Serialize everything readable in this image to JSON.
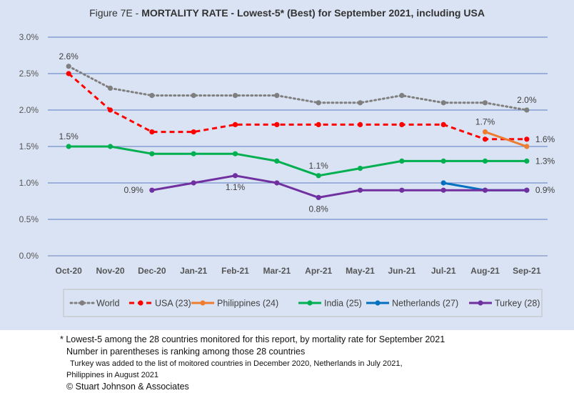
{
  "chart_data": {
    "type": "line",
    "title_prefix": "Figure 7E  - ",
    "title_main": "MORTALITY RATE - Lowest-5* (Best) for September 2021, including USA",
    "xlabel": "",
    "ylabel": "",
    "categories": [
      "Oct-20",
      "Nov-20",
      "Dec-20",
      "Jan-21",
      "Feb-21",
      "Mar-21",
      "Apr-21",
      "May-21",
      "Jun-21",
      "Jul-21",
      "Aug-21",
      "Sep-21"
    ],
    "y_ticks": [
      "0.0%",
      "0.5%",
      "1.0%",
      "1.5%",
      "2.0%",
      "2.5%",
      "3.0%"
    ],
    "ylim": [
      0,
      3.0
    ],
    "grid": true,
    "legend_position": "bottom",
    "series": [
      {
        "name": "World",
        "color": "#7f7f7f",
        "style": "dotted",
        "values": [
          2.6,
          2.3,
          2.2,
          2.2,
          2.2,
          2.2,
          2.1,
          2.1,
          2.2,
          2.1,
          2.1,
          2.0
        ]
      },
      {
        "name": "USA (23)",
        "color": "#ff0000",
        "style": "dashed",
        "values": [
          2.5,
          2.0,
          1.7,
          1.7,
          1.8,
          1.8,
          1.8,
          1.8,
          1.8,
          1.8,
          1.6,
          1.6
        ]
      },
      {
        "name": "Philippines (24)",
        "color": "#ed7d31",
        "style": "solid",
        "values": [
          null,
          null,
          null,
          null,
          null,
          null,
          null,
          null,
          null,
          null,
          1.7,
          1.5
        ]
      },
      {
        "name": "India (25)",
        "color": "#00b050",
        "style": "solid",
        "values": [
          1.5,
          1.5,
          1.4,
          1.4,
          1.4,
          1.3,
          1.1,
          1.2,
          1.3,
          1.3,
          1.3,
          1.3
        ]
      },
      {
        "name": "Netherlands (27)",
        "color": "#0070c0",
        "style": "solid",
        "values": [
          null,
          null,
          null,
          null,
          null,
          null,
          null,
          null,
          null,
          1.0,
          0.9,
          0.9
        ]
      },
      {
        "name": "Turkey (28)",
        "color": "#7030a0",
        "style": "solid",
        "values": [
          null,
          null,
          0.9,
          1.0,
          1.1,
          1.0,
          0.8,
          0.9,
          0.9,
          0.9,
          0.9,
          0.9
        ]
      }
    ],
    "annotations": [
      {
        "text": "2.6%",
        "series": 0,
        "index": 0,
        "anchor": "above"
      },
      {
        "text": "2.0%",
        "series": 0,
        "index": 11,
        "anchor": "above"
      },
      {
        "text": "1.7%",
        "series": 2,
        "index": 10,
        "anchor": "above"
      },
      {
        "text": "1.6%",
        "series": 1,
        "index": 11,
        "anchor": "right"
      },
      {
        "text": "1.5%",
        "series": 3,
        "index": 0,
        "anchor": "above"
      },
      {
        "text": "1.1%",
        "series": 3,
        "index": 6,
        "anchor": "above"
      },
      {
        "text": "1.3%",
        "series": 3,
        "index": 11,
        "anchor": "right"
      },
      {
        "text": "0.9%",
        "series": 5,
        "index": 2,
        "anchor": "left"
      },
      {
        "text": "1.1%",
        "series": 5,
        "index": 4,
        "anchor": "below"
      },
      {
        "text": "0.8%",
        "series": 5,
        "index": 6,
        "anchor": "below"
      },
      {
        "text": "0.9%",
        "series": 5,
        "index": 11,
        "anchor": "right"
      }
    ]
  },
  "notes": {
    "line1": "* Lowest-5 among the 28 countries monitored for this report, by mortality rate for September 2021",
    "line2": "Number in parentheses is ranking among those 28 countries",
    "line3": "Turkey was added to the list of moitored countries in December 2020, Netherlands in July 2021,",
    "line4": "Philippines in August 2021",
    "line5": "© Stuart Johnson & Associates"
  }
}
